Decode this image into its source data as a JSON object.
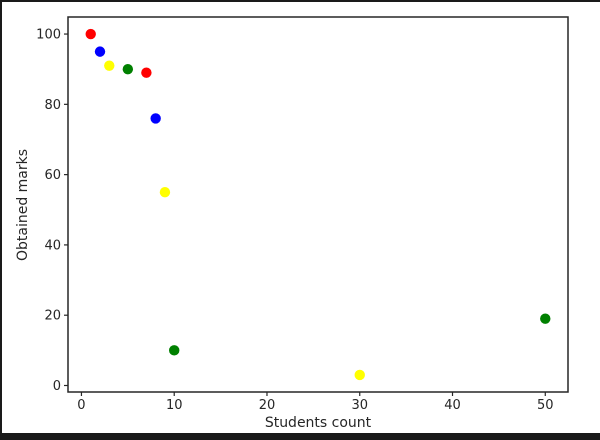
{
  "frame": {
    "background_color": "#ffffff",
    "border_color": "#1a1a1a"
  },
  "chart_data": {
    "type": "scatter",
    "title": "",
    "xlabel": "Students count",
    "ylabel": "Obtained marks",
    "xlim": [
      -1.45,
      52.45
    ],
    "ylim": [
      -1.85,
      104.85
    ],
    "xticks": [
      0,
      10,
      20,
      30,
      40,
      50
    ],
    "yticks": [
      0,
      20,
      40,
      60,
      80,
      100
    ],
    "grid": false,
    "legend": null,
    "marker": {
      "shape": "circle",
      "radius_px": 5.2
    },
    "axis_color": "#262626",
    "tick_label_color": "#262626",
    "series": [
      {
        "name": "red",
        "color": "#ff0000",
        "points": [
          [
            1,
            100
          ],
          [
            7,
            89
          ]
        ]
      },
      {
        "name": "blue",
        "color": "#0000ff",
        "points": [
          [
            2,
            95
          ],
          [
            8,
            76
          ]
        ]
      },
      {
        "name": "yellow",
        "color": "#ffff00",
        "points": [
          [
            3,
            91
          ],
          [
            9,
            55
          ],
          [
            30,
            3
          ]
        ]
      },
      {
        "name": "green",
        "color": "#008000",
        "points": [
          [
            5,
            90
          ],
          [
            10,
            10
          ],
          [
            50,
            19
          ]
        ]
      }
    ]
  }
}
